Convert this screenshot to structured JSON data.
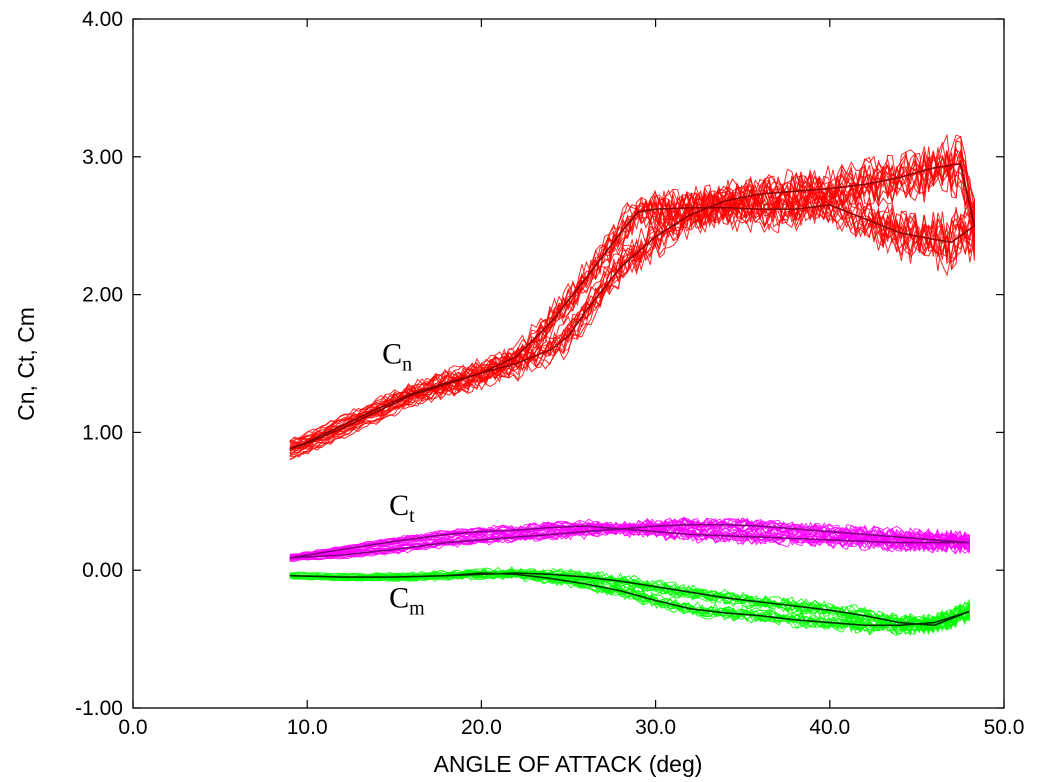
{
  "chart_data": {
    "type": "line",
    "title": "",
    "xlabel": "ANGLE OF ATTACK (deg)",
    "ylabel": "Cn, Ct, Cm",
    "xlim": [
      0,
      50
    ],
    "ylim": [
      -1,
      4
    ],
    "x_ticks": [
      "0.0",
      "10.0",
      "20.0",
      "30.0",
      "40.0",
      "50.0"
    ],
    "y_ticks": [
      "-1.00",
      "0.00",
      "1.00",
      "2.00",
      "3.00",
      "4.00"
    ],
    "grid": false,
    "legend": "none",
    "annotations": [
      {
        "base": "C",
        "sub": "n",
        "x": 14.3,
        "y": 1.5
      },
      {
        "base": "C",
        "sub": "t",
        "x": 14.7,
        "y": 0.4
      },
      {
        "base": "C",
        "sub": "m",
        "x": 14.7,
        "y": -0.27
      }
    ],
    "series": [
      {
        "id": "Cn",
        "color": "#ff0000",
        "mean_color": "#8b0000",
        "upstroke": {
          "x": [
            9,
            10,
            12,
            14,
            16,
            18,
            20,
            22,
            24,
            25,
            26,
            28,
            30,
            32,
            34,
            36,
            38,
            40,
            42,
            44,
            46,
            47.5,
            48.3
          ],
          "y": [
            0.88,
            0.93,
            1.05,
            1.17,
            1.28,
            1.36,
            1.43,
            1.5,
            1.6,
            1.7,
            1.88,
            2.2,
            2.42,
            2.58,
            2.68,
            2.73,
            2.75,
            2.77,
            2.8,
            2.85,
            2.92,
            2.95,
            2.5
          ]
        },
        "downstroke": {
          "x": [
            48.3,
            47,
            46,
            44,
            42,
            40,
            38,
            36,
            34,
            32,
            30,
            29,
            28,
            26,
            24,
            22,
            20,
            18,
            16,
            14,
            12,
            10,
            9
          ],
          "y": [
            2.5,
            2.38,
            2.4,
            2.45,
            2.55,
            2.65,
            2.62,
            2.62,
            2.63,
            2.63,
            2.62,
            2.6,
            2.45,
            2.12,
            1.8,
            1.55,
            1.43,
            1.35,
            1.27,
            1.15,
            1.03,
            0.92,
            0.88
          ]
        },
        "scatter_band": 0.22
      },
      {
        "id": "Ct",
        "color": "#ff00ff",
        "mean_color": "#800080",
        "upstroke": {
          "x": [
            9,
            12,
            15,
            18,
            20,
            22,
            24,
            26,
            28,
            30,
            32,
            34,
            36,
            38,
            40,
            42,
            44,
            46,
            48
          ],
          "y": [
            0.09,
            0.15,
            0.21,
            0.26,
            0.28,
            0.29,
            0.31,
            0.32,
            0.3,
            0.28,
            0.26,
            0.25,
            0.24,
            0.23,
            0.22,
            0.21,
            0.2,
            0.2,
            0.2
          ]
        },
        "downstroke": {
          "x": [
            48,
            46,
            44,
            42,
            40,
            38,
            36,
            34,
            32,
            30,
            28,
            26,
            24,
            22,
            20,
            18,
            15,
            12,
            9
          ],
          "y": [
            0.2,
            0.22,
            0.24,
            0.26,
            0.28,
            0.3,
            0.32,
            0.33,
            0.33,
            0.32,
            0.3,
            0.28,
            0.26,
            0.24,
            0.22,
            0.2,
            0.15,
            0.11,
            0.09
          ]
        },
        "scatter_band": 0.08
      },
      {
        "id": "Cm",
        "color": "#00ff00",
        "mean_color": "#003300",
        "upstroke": {
          "x": [
            9,
            12,
            15,
            18,
            20,
            22,
            24,
            26,
            28,
            30,
            32,
            34,
            36,
            38,
            40,
            42,
            44,
            46,
            48
          ],
          "y": [
            -0.04,
            -0.05,
            -0.05,
            -0.04,
            -0.02,
            -0.03,
            -0.06,
            -0.1,
            -0.15,
            -0.22,
            -0.28,
            -0.31,
            -0.33,
            -0.36,
            -0.38,
            -0.4,
            -0.4,
            -0.38,
            -0.3
          ]
        },
        "downstroke": {
          "x": [
            48,
            46,
            44,
            42,
            40,
            38,
            36,
            34,
            32,
            30,
            28,
            26,
            24,
            22,
            20,
            18,
            15,
            12,
            9
          ],
          "y": [
            -0.3,
            -0.4,
            -0.38,
            -0.33,
            -0.29,
            -0.26,
            -0.23,
            -0.2,
            -0.16,
            -0.12,
            -0.08,
            -0.05,
            -0.03,
            -0.02,
            -0.03,
            -0.04,
            -0.05,
            -0.05,
            -0.04
          ]
        },
        "scatter_band": 0.08
      }
    ]
  }
}
